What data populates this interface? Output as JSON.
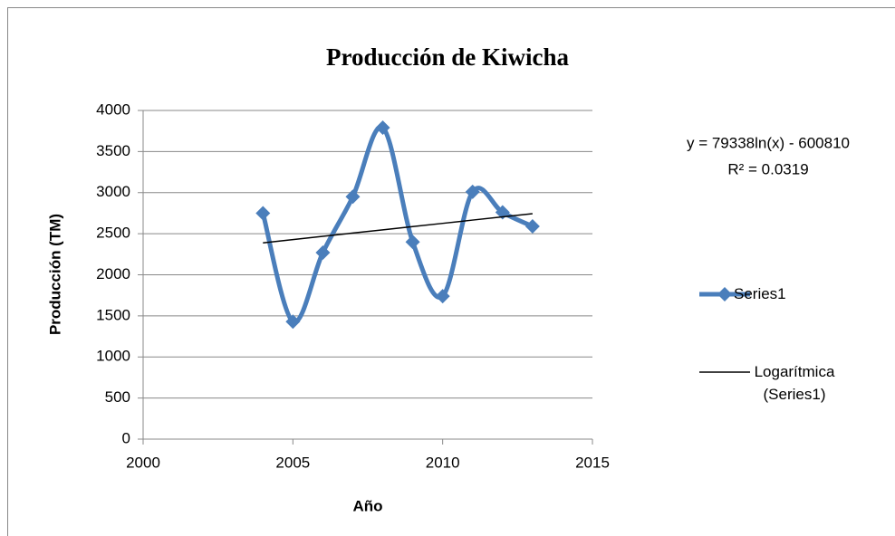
{
  "chart_data": {
    "type": "line",
    "title": "Producción de Kiwicha",
    "x_label": "Año",
    "y_label": "Producción (TM)",
    "x": [
      2004,
      2005,
      2006,
      2007,
      2008,
      2009,
      2010,
      2011,
      2012,
      2013
    ],
    "series": [
      {
        "name": "Series1",
        "color": "#4a7ebb",
        "smooth": true,
        "marker": "diamond",
        "values": [
          2750,
          1430,
          2270,
          2950,
          3790,
          2400,
          1740,
          3010,
          2760,
          2590
        ]
      },
      {
        "name": "Logarítmica (Series1)",
        "color": "#000000",
        "smooth": false,
        "values": [
          2389,
          2429,
          2468,
          2508,
          2547,
          2587,
          2626,
          2666,
          2705,
          2744
        ]
      }
    ],
    "annotations": [
      "y = 79338ln(x) - 600810",
      "R² = 0.0319"
    ],
    "xlim": [
      2000,
      2015
    ],
    "xticks": [
      2000,
      2005,
      2010,
      2015
    ],
    "ylim": [
      0,
      4000
    ],
    "yticks": [
      0,
      500,
      1000,
      1500,
      2000,
      2500,
      3000,
      3500,
      4000
    ],
    "grid": true,
    "legend": "right"
  }
}
